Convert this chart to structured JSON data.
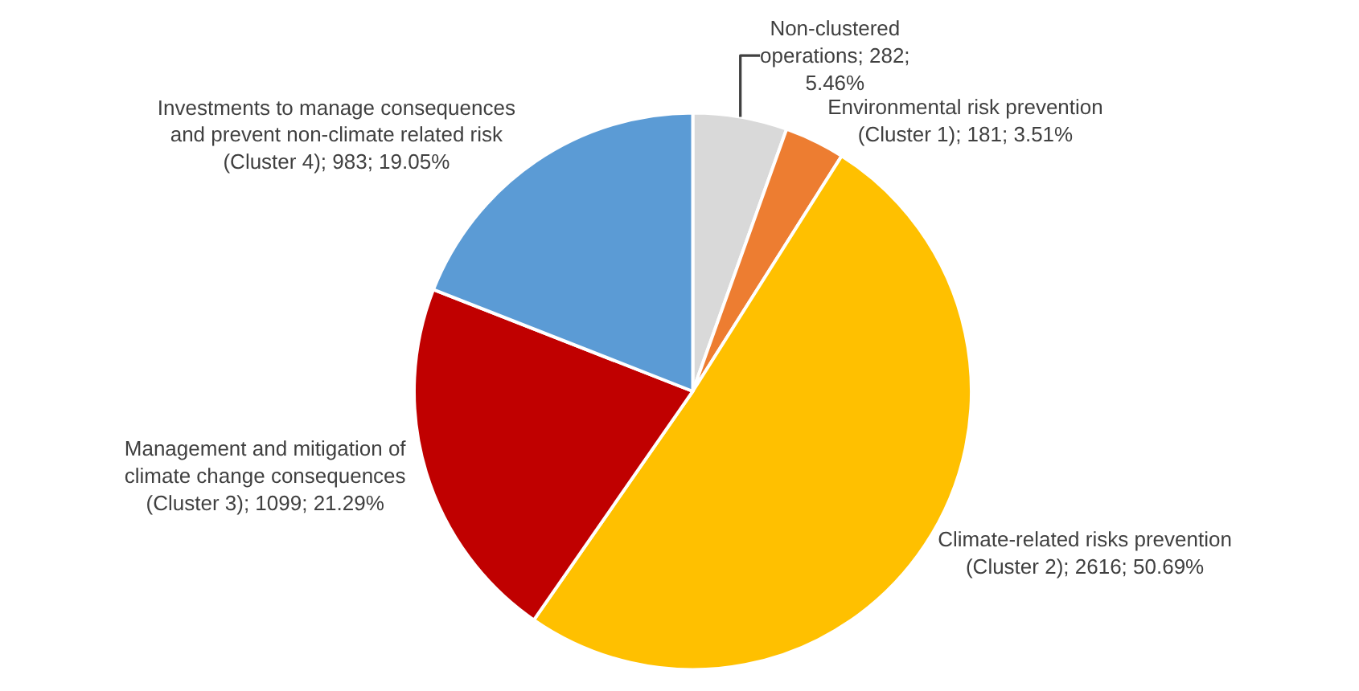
{
  "chart_data": {
    "type": "pie",
    "categories": [
      "Non-clustered operations",
      "Environmental risk prevention (Cluster 1)",
      "Climate-related risks prevention (Cluster 2)",
      "Management and mitigation of climate change consequences (Cluster 3)",
      "Investments to manage consequences and prevent non-climate related risk (Cluster 4)"
    ],
    "values": [
      282,
      181,
      2616,
      1099,
      983
    ],
    "colors": [
      "#d9d9d9",
      "#ed7d31",
      "#ffc000",
      "#c00000",
      "#5b9bd5"
    ],
    "value_labels": [
      "282; 5.46%",
      "181; 3.51%",
      "2616; 50.69%",
      "1099; 21.29%",
      "983; 19.05%"
    ],
    "legend": false
  }
}
